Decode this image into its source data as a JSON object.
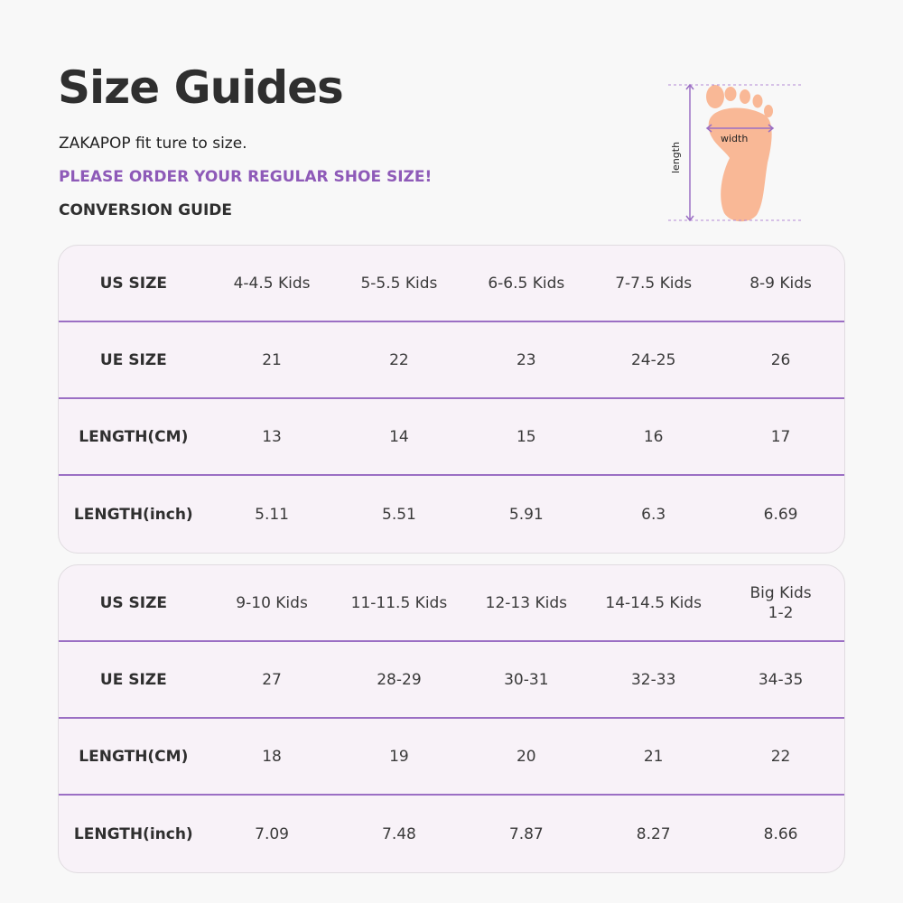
{
  "header": {
    "title": "Size Guides",
    "subtitle": "ZAKAPOP fit ture to size.",
    "notice": "PLEASE ORDER YOUR REGULAR SHOE SIZE!",
    "section": "CONVERSION GUIDE"
  },
  "diagram": {
    "length_label": "length",
    "width_label": "width",
    "accent": "#9b6fc4",
    "foot_color": "#f9b896"
  },
  "tables": [
    {
      "rows": [
        {
          "label": "US SIZE",
          "values": [
            "4-4.5 Kids",
            "5-5.5 Kids",
            "6-6.5 Kids",
            "7-7.5 Kids",
            "8-9 Kids"
          ]
        },
        {
          "label": "UE SIZE",
          "values": [
            "21",
            "22",
            "23",
            "24-25",
            "26"
          ]
        },
        {
          "label": "LENGTH(CM)",
          "values": [
            "13",
            "14",
            "15",
            "16",
            "17"
          ]
        },
        {
          "label": "LENGTH(inch)",
          "values": [
            "5.11",
            "5.51",
            "5.91",
            "6.3",
            "6.69"
          ]
        }
      ]
    },
    {
      "rows": [
        {
          "label": "US SIZE",
          "values": [
            "9-10 Kids",
            "11-11.5 Kids",
            "12-13 Kids",
            "14-14.5 Kids",
            "Big Kids\n1-2"
          ]
        },
        {
          "label": "UE SIZE",
          "values": [
            "27",
            "28-29",
            "30-31",
            "32-33",
            "34-35"
          ]
        },
        {
          "label": "LENGTH(CM)",
          "values": [
            "18",
            "19",
            "20",
            "21",
            "22"
          ]
        },
        {
          "label": "LENGTH(inch)",
          "values": [
            "7.09",
            "7.48",
            "7.87",
            "8.27",
            "8.66"
          ]
        }
      ]
    }
  ]
}
